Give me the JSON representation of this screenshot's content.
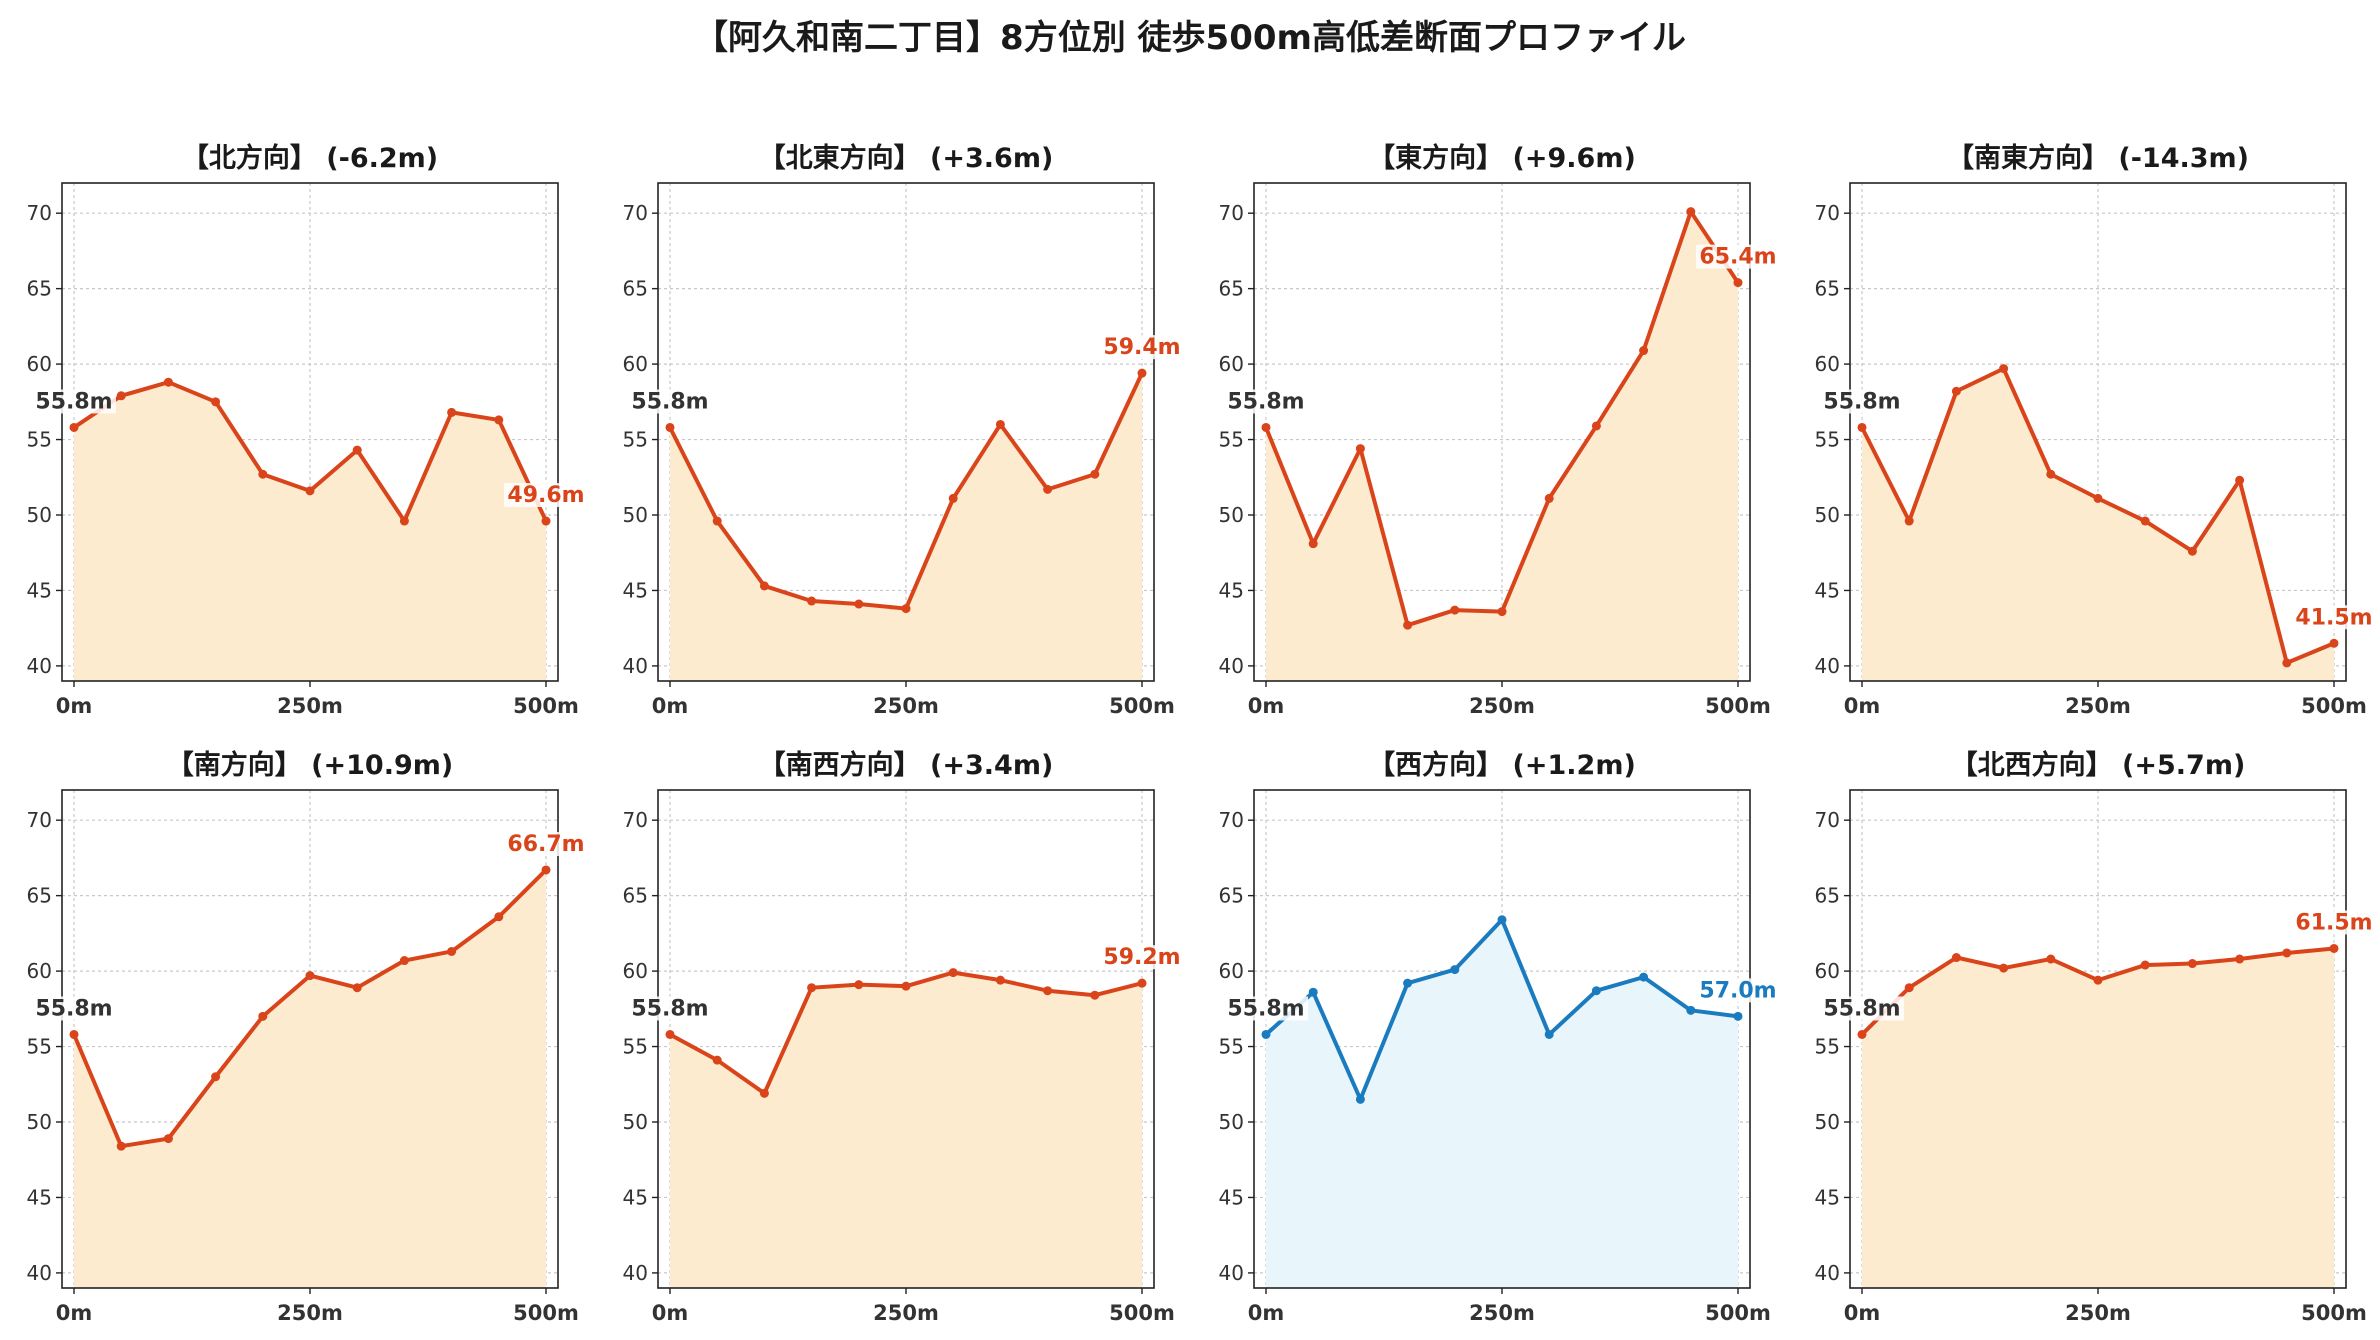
{
  "title": "【阿久和南二丁目】8方位別 徒歩500m高低差断面プロファイル",
  "colors": {
    "highlight_line": "#d9441a",
    "highlight_fill": "#fdebd0",
    "highlight_label": "#d9441a",
    "muted_line": "#1a7bbf",
    "muted_fill": "#e8f5fb",
    "muted_label": "#1a7bbf",
    "start_label": "#333333",
    "grid": "#c8c8c8",
    "axis": "#222222"
  },
  "chart_data": [
    {
      "type": "area",
      "title": "【北方向】 (-6.2m)",
      "xticks": [
        "0m",
        "250m",
        "500m"
      ],
      "xlim": [
        0,
        500
      ],
      "ylim": [
        39,
        72
      ],
      "yticks": [
        40,
        45,
        50,
        55,
        60,
        65,
        70
      ],
      "grid": true,
      "style": "highlight",
      "x": [
        0,
        50,
        100,
        150,
        200,
        250,
        300,
        350,
        400,
        450,
        500
      ],
      "values": [
        55.8,
        57.9,
        58.8,
        57.5,
        52.7,
        51.6,
        54.3,
        49.6,
        56.8,
        56.3,
        49.6
      ],
      "start_label": "55.8m",
      "end_label": "49.6m"
    },
    {
      "type": "area",
      "title": "【北東方向】 (+3.6m)",
      "xticks": [
        "0m",
        "250m",
        "500m"
      ],
      "xlim": [
        0,
        500
      ],
      "ylim": [
        39,
        72
      ],
      "yticks": [
        40,
        45,
        50,
        55,
        60,
        65,
        70
      ],
      "grid": true,
      "style": "highlight",
      "x": [
        0,
        50,
        100,
        150,
        200,
        250,
        300,
        350,
        400,
        450,
        500
      ],
      "values": [
        55.8,
        49.6,
        45.3,
        44.3,
        44.1,
        43.8,
        51.1,
        56.0,
        51.7,
        52.7,
        59.4
      ],
      "start_label": "55.8m",
      "end_label": "59.4m"
    },
    {
      "type": "area",
      "title": "【東方向】 (+9.6m)",
      "xticks": [
        "0m",
        "250m",
        "500m"
      ],
      "xlim": [
        0,
        500
      ],
      "ylim": [
        39,
        72
      ],
      "yticks": [
        40,
        45,
        50,
        55,
        60,
        65,
        70
      ],
      "grid": true,
      "style": "highlight",
      "x": [
        0,
        50,
        100,
        150,
        200,
        250,
        300,
        350,
        400,
        450,
        500
      ],
      "values": [
        55.8,
        48.1,
        54.4,
        42.7,
        43.7,
        43.6,
        51.1,
        55.9,
        60.9,
        70.1,
        65.4
      ],
      "start_label": "55.8m",
      "end_label": "65.4m"
    },
    {
      "type": "area",
      "title": "【南東方向】 (-14.3m)",
      "xticks": [
        "0m",
        "250m",
        "500m"
      ],
      "xlim": [
        0,
        500
      ],
      "ylim": [
        39,
        72
      ],
      "yticks": [
        40,
        45,
        50,
        55,
        60,
        65,
        70
      ],
      "grid": true,
      "style": "highlight",
      "x": [
        0,
        50,
        100,
        150,
        200,
        250,
        300,
        350,
        400,
        450,
        500
      ],
      "values": [
        55.8,
        49.6,
        58.2,
        59.7,
        52.7,
        51.1,
        49.6,
        47.6,
        52.3,
        40.2,
        41.5
      ],
      "start_label": "55.8m",
      "end_label": "41.5m"
    },
    {
      "type": "area",
      "title": "【南方向】 (+10.9m)",
      "xticks": [
        "0m",
        "250m",
        "500m"
      ],
      "xlim": [
        0,
        500
      ],
      "ylim": [
        39,
        72
      ],
      "yticks": [
        40,
        45,
        50,
        55,
        60,
        65,
        70
      ],
      "grid": true,
      "style": "highlight",
      "x": [
        0,
        50,
        100,
        150,
        200,
        250,
        300,
        350,
        400,
        450,
        500
      ],
      "values": [
        55.8,
        48.4,
        48.9,
        53.0,
        57.0,
        59.7,
        58.9,
        60.7,
        61.3,
        63.6,
        66.7
      ],
      "start_label": "55.8m",
      "end_label": "66.7m"
    },
    {
      "type": "area",
      "title": "【南西方向】 (+3.4m)",
      "xticks": [
        "0m",
        "250m",
        "500m"
      ],
      "xlim": [
        0,
        500
      ],
      "ylim": [
        39,
        72
      ],
      "yticks": [
        40,
        45,
        50,
        55,
        60,
        65,
        70
      ],
      "grid": true,
      "style": "highlight",
      "x": [
        0,
        50,
        100,
        150,
        200,
        250,
        300,
        350,
        400,
        450,
        500
      ],
      "values": [
        55.8,
        54.1,
        51.9,
        58.9,
        59.1,
        59.0,
        59.9,
        59.4,
        58.7,
        58.4,
        59.2
      ],
      "start_label": "55.8m",
      "end_label": "59.2m"
    },
    {
      "type": "area",
      "title": "【西方向】 (+1.2m)",
      "xticks": [
        "0m",
        "250m",
        "500m"
      ],
      "xlim": [
        0,
        500
      ],
      "ylim": [
        39,
        72
      ],
      "yticks": [
        40,
        45,
        50,
        55,
        60,
        65,
        70
      ],
      "grid": true,
      "style": "muted",
      "x": [
        0,
        50,
        100,
        150,
        200,
        250,
        300,
        350,
        400,
        450,
        500
      ],
      "values": [
        55.8,
        58.6,
        51.5,
        59.2,
        60.1,
        63.4,
        55.8,
        58.7,
        59.6,
        57.4,
        57.0
      ],
      "start_label": "55.8m",
      "end_label": "57.0m"
    },
    {
      "type": "area",
      "title": "【北西方向】 (+5.7m)",
      "xticks": [
        "0m",
        "250m",
        "500m"
      ],
      "xlim": [
        0,
        500
      ],
      "ylim": [
        39,
        72
      ],
      "yticks": [
        40,
        45,
        50,
        55,
        60,
        65,
        70
      ],
      "grid": true,
      "style": "highlight",
      "x": [
        0,
        50,
        100,
        150,
        200,
        250,
        300,
        350,
        400,
        450,
        500
      ],
      "values": [
        55.8,
        58.9,
        60.9,
        60.2,
        60.8,
        59.4,
        60.4,
        60.5,
        60.8,
        61.2,
        61.5
      ],
      "start_label": "55.8m",
      "end_label": "61.5m"
    }
  ]
}
